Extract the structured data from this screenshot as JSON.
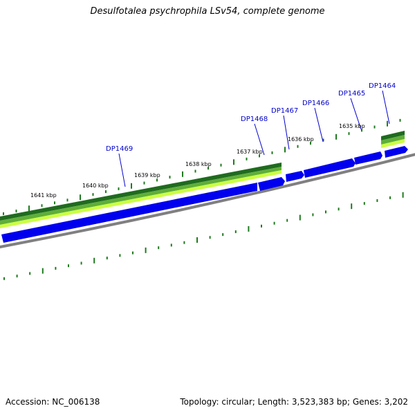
{
  "title": "Desulfotalea psychrophila LSv54, complete genome",
  "accession_text": "Accession: NC_006138",
  "summary_text": "Topology: circular; Length: 3,523,383 bp; Genes: 3,202",
  "scale_labels": [
    "1641 kbp",
    "1640 kbp",
    "1639 kbp",
    "1638 kbp",
    "1637 kbp",
    "1636 kbp",
    "1635 kbp"
  ],
  "gene_labels": [
    "DP1469",
    "DP1468",
    "DP1467",
    "DP1466",
    "DP1465",
    "DP1464"
  ],
  "colors": {
    "gene_blue": "#0000ee",
    "gene_label": "#0000cc",
    "tick_green": "#1e7a1e",
    "band_dark": "#1f6b1f",
    "band_mid": "#5fae3a",
    "band_light": "#ccff44",
    "backbone": "#808080"
  }
}
